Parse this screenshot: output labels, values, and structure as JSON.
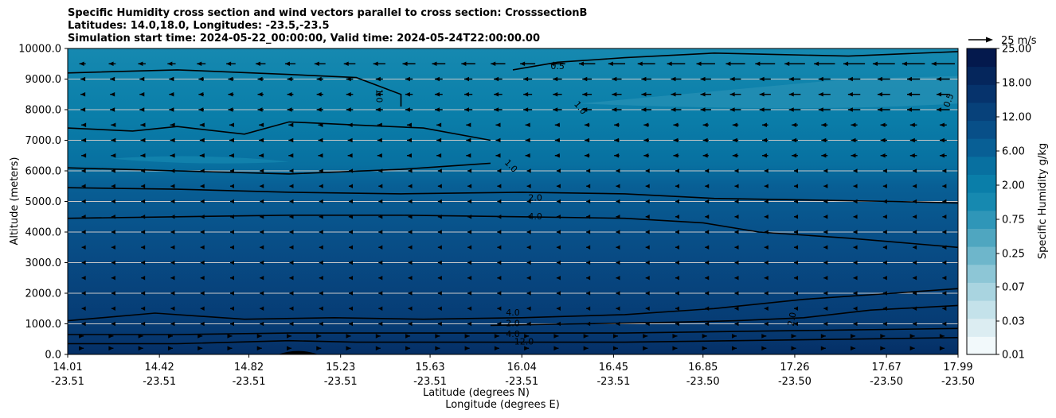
{
  "chart_data": {
    "type": "contourf",
    "title_lines": [
      "Specific Humidity cross section and wind vectors parallel to cross section: CrosssectionB",
      "Latitudes: 14.0,18.0, Longitudes: -23.5,-23.5",
      "Simulation start time: 2024-05-22_00:00:00, Valid time: 2024-05-24T22:00:00.00"
    ],
    "ylabel": "Altitude (meters)",
    "xlabel_lat": "Latitude (degrees N)",
    "xlabel_lon": "Longitude (degrees E)",
    "ylim": [
      0,
      10000
    ],
    "yticks": [
      "0.0",
      "1000.0",
      "2000.0",
      "3000.0",
      "4000.0",
      "5000.0",
      "6000.0",
      "7000.0",
      "8000.0",
      "9000.0",
      "10000.0"
    ],
    "xticks_lat": [
      "14.01",
      "14.42",
      "14.82",
      "15.23",
      "15.63",
      "16.04",
      "16.45",
      "16.85",
      "17.26",
      "17.67",
      "17.99"
    ],
    "xticks_lon": [
      "-23.51",
      "-23.51",
      "-23.51",
      "-23.51",
      "-23.51",
      "-23.51",
      "-23.51",
      "-23.50",
      "-23.50",
      "-23.50",
      "-23.50"
    ],
    "colorbar_label": "Specific Humidity g/kg",
    "colorbar_ticks": [
      "0.01",
      "0.03",
      "0.07",
      "0.25",
      "0.75",
      "2.00",
      "6.00",
      "12.00",
      "18.00",
      "25.00"
    ],
    "colorbar_colors": [
      "#f2f9fb",
      "#dcedf2",
      "#c4e2ea",
      "#a9d4e0",
      "#8dc6d6",
      "#6eb6cb",
      "#4fa6c0",
      "#2f96b8",
      "#1689b0",
      "#0a7ea9",
      "#0870a0",
      "#085f95",
      "#084f88",
      "#07417a",
      "#06336c",
      "#05265c",
      "#04194d"
    ],
    "quiver_key_label": "25 m/s",
    "contour_labels": [
      "0.5",
      "1.0",
      "1.0",
      "1.0",
      "0.5",
      "2.0",
      "4.0",
      "4.0",
      "2.0",
      "4.0",
      "12.0",
      "2.0"
    ],
    "contour_levels": [
      {
        "level": 0.5,
        "points": [
          [
            16.0,
            9300
          ],
          [
            16.2,
            9550
          ],
          [
            16.5,
            9700
          ],
          [
            16.9,
            9850
          ],
          [
            17.2,
            9800
          ],
          [
            17.5,
            9750
          ],
          [
            17.99,
            9900
          ]
        ]
      },
      {
        "level": 1.0,
        "points": [
          [
            14.01,
            6100
          ],
          [
            14.5,
            6000
          ],
          [
            15.0,
            5900
          ],
          [
            15.5,
            6050
          ],
          [
            15.9,
            6250
          ]
        ]
      },
      {
        "level": 1.0,
        "points": [
          [
            14.01,
            7400
          ],
          [
            14.3,
            7300
          ],
          [
            14.5,
            7450
          ],
          [
            14.8,
            7200
          ],
          [
            15.0,
            7600
          ],
          [
            15.3,
            7500
          ],
          [
            15.6,
            7400
          ],
          [
            15.9,
            7000
          ]
        ]
      },
      {
        "level": 1.0,
        "points": [
          [
            14.01,
            9200
          ],
          [
            14.5,
            9300
          ],
          [
            15.0,
            9150
          ],
          [
            15.3,
            9050
          ],
          [
            15.5,
            8500
          ],
          [
            15.5,
            8100
          ]
        ]
      },
      {
        "level": 2.0,
        "points": [
          [
            14.01,
            5450
          ],
          [
            14.5,
            5400
          ],
          [
            15.0,
            5300
          ],
          [
            15.5,
            5250
          ],
          [
            16.04,
            5300
          ],
          [
            16.5,
            5250
          ],
          [
            16.9,
            5100
          ],
          [
            17.3,
            5050
          ],
          [
            17.7,
            5000
          ],
          [
            17.99,
            4950
          ]
        ]
      },
      {
        "level": 4.0,
        "points": [
          [
            14.01,
            4450
          ],
          [
            14.5,
            4500
          ],
          [
            15.0,
            4550
          ],
          [
            15.5,
            4550
          ],
          [
            16.04,
            4500
          ],
          [
            16.5,
            4450
          ],
          [
            16.85,
            4300
          ],
          [
            17.1,
            4000
          ],
          [
            17.5,
            3800
          ],
          [
            17.99,
            3500
          ]
        ]
      },
      {
        "level": 4.0,
        "points": [
          [
            14.01,
            1100
          ],
          [
            14.4,
            1350
          ],
          [
            14.8,
            1150
          ],
          [
            15.2,
            1200
          ],
          [
            15.6,
            1150
          ],
          [
            16.04,
            1200
          ],
          [
            16.5,
            1300
          ],
          [
            16.9,
            1500
          ],
          [
            17.3,
            1800
          ],
          [
            17.7,
            2000
          ],
          [
            17.99,
            2150
          ]
        ]
      },
      {
        "level": 2.0,
        "points": [
          [
            15.9,
            950
          ],
          [
            16.3,
            1000
          ],
          [
            16.7,
            1050
          ],
          [
            17.0,
            1100
          ],
          [
            17.3,
            1200
          ],
          [
            17.6,
            1450
          ],
          [
            17.99,
            1600
          ]
        ]
      },
      {
        "level": 4.0,
        "points": [
          [
            14.01,
            650
          ],
          [
            14.5,
            650
          ],
          [
            15.0,
            700
          ],
          [
            15.4,
            700
          ],
          [
            16.04,
            700
          ],
          [
            16.5,
            700
          ],
          [
            17.0,
            750
          ],
          [
            17.5,
            800
          ],
          [
            17.99,
            850
          ]
        ]
      },
      {
        "level": 12.0,
        "points": [
          [
            14.01,
            350
          ],
          [
            14.5,
            350
          ],
          [
            15.0,
            450
          ],
          [
            15.3,
            400
          ],
          [
            16.04,
            400
          ],
          [
            16.5,
            400
          ],
          [
            17.0,
            450
          ],
          [
            17.5,
            500
          ],
          [
            17.99,
            550
          ]
        ]
      }
    ]
  }
}
